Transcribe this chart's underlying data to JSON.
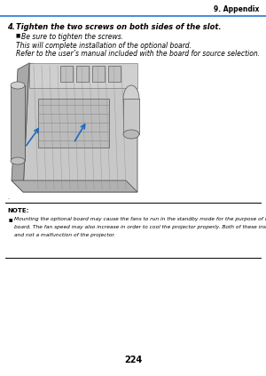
{
  "page_number": "224",
  "header_right": "9. Appendix",
  "header_line_color": "#4a90d9",
  "step_number": "4.",
  "step_text": "Tighten the two screws on both sides of the slot.",
  "bullet1": "Be sure to tighten the screws.",
  "para1": "This will complete installation of the optional board.",
  "para2": "Refer to the user’s manual included with the board for source selection.",
  "note_label": "NOTE:",
  "note_bullet": "Mounting the optional board may cause the fans to run in the standby mode for the purpose of cooling depending on the optional board. The fan speed may also increase in order to cool the projector properly. Both of these instances are considered normal and not a malfunction of the projector.",
  "background_color": "#ffffff",
  "text_color": "#000000"
}
